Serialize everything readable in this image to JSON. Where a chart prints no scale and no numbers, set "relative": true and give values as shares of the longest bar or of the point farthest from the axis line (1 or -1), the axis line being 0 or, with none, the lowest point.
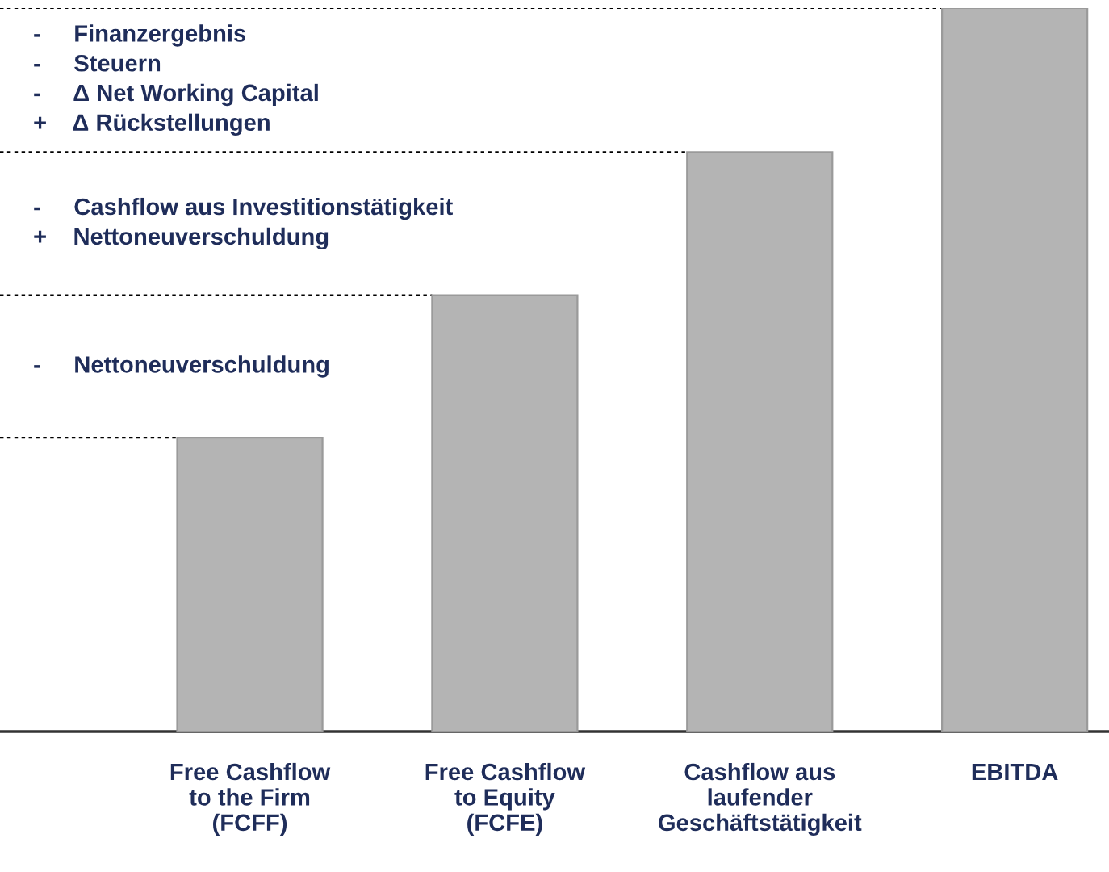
{
  "chart_data": {
    "type": "bar",
    "relative": true,
    "categories": [
      "Free Cashflow\nto the Firm\n(FCFF)",
      "Free Cashflow\nto Equity\n(FCFE)",
      "Cashflow aus\nlaufender\nGeschäftstätigkeit",
      "EBITDA"
    ],
    "values": [
      0.406,
      0.603,
      0.801,
      1
    ],
    "color": "#b4b4b4",
    "ref_lines": [
      {
        "axis": "y",
        "value": 0.406,
        "line_style": "dashed",
        "color": "#000000"
      },
      {
        "axis": "y",
        "value": 0.603,
        "line_style": "dashed",
        "color": "#000000"
      },
      {
        "axis": "y",
        "value": 0.801,
        "line_style": "dashed",
        "color": "#000000"
      },
      {
        "axis": "y",
        "value": 1,
        "line_style": "dashed",
        "color": "#000000"
      }
    ],
    "annotations": [
      "-     Finanzergebnis\n-     Steuern\n-     Δ Net Working Capital\n+    Δ Rückstellungen",
      "-     Cashflow aus Investitionstätigkeit\n+    Nettoneuverschuldung",
      "-     Nettoneuverschuldung"
    ],
    "grid": false,
    "legend": false
  }
}
